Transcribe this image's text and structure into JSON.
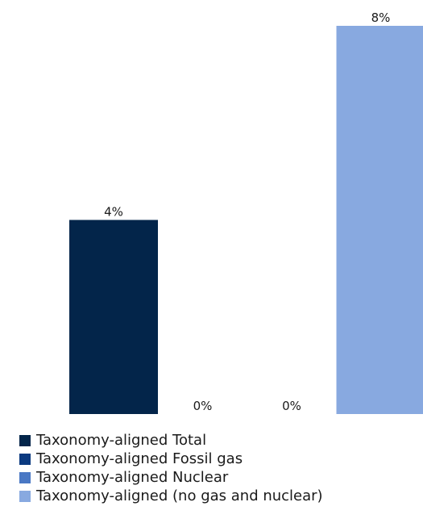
{
  "chart_data": {
    "type": "bar",
    "categories": [
      "Taxonomy-aligned Total",
      "Taxonomy-aligned Fossil gas",
      "Taxonomy-aligned Nuclear",
      "Taxonomy-aligned (no gas and nuclear)"
    ],
    "values": [
      4,
      0,
      0,
      8
    ],
    "data_labels": [
      "4%",
      "0%",
      "0%",
      "8%"
    ],
    "colors": [
      "#03254a",
      "#0b3a80",
      "#4a78c4",
      "#88a9e0"
    ],
    "ylim": [
      0,
      8
    ],
    "grid": false,
    "legend_position": "bottom-left"
  },
  "legend": {
    "items": [
      {
        "label": "Taxonomy-aligned Total",
        "color": "#03254a"
      },
      {
        "label": "Taxonomy-aligned Fossil gas",
        "color": "#0b3a80"
      },
      {
        "label": "Taxonomy-aligned Nuclear",
        "color": "#4a78c4"
      },
      {
        "label": "Taxonomy-aligned (no gas and nuclear)",
        "color": "#88a9e0"
      }
    ]
  }
}
